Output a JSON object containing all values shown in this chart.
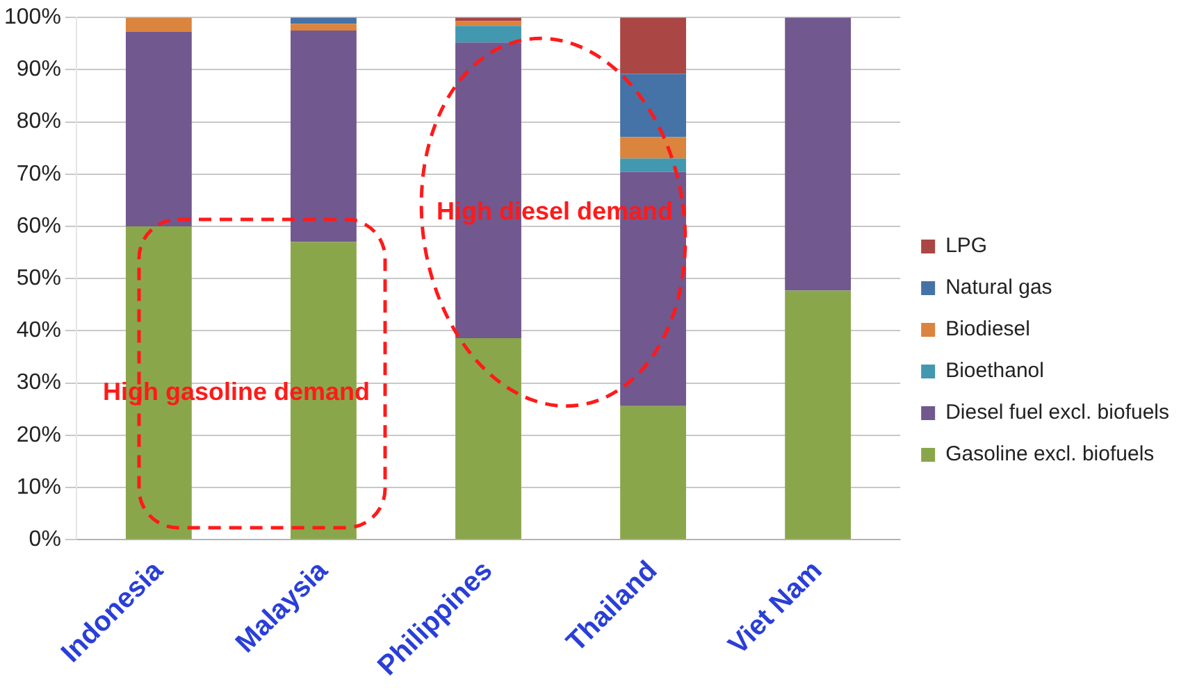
{
  "chart_data": {
    "type": "bar",
    "stacked": true,
    "categories": [
      "Indonesia",
      "Malaysia",
      "Philippines",
      "Thailand",
      "Viet Nam"
    ],
    "series": [
      {
        "name": "Gasoline excl. biofuels",
        "color": "#8aa64b",
        "values": [
          60,
          57,
          38.6,
          25.6,
          47.7
        ]
      },
      {
        "name": "Diesel fuel excl. biofuels",
        "color": "#71588f",
        "values": [
          37.3,
          40.5,
          56.6,
          44.8,
          52.3
        ]
      },
      {
        "name": "Bioethanol",
        "color": "#4298af",
        "values": [
          0,
          0,
          3.2,
          2.6,
          0
        ]
      },
      {
        "name": "Biodiesel",
        "color": "#db843d",
        "values": [
          2.7,
          1.3,
          0.9,
          4.1,
          0
        ]
      },
      {
        "name": "Natural gas",
        "color": "#4572a7",
        "values": [
          0,
          1.2,
          0,
          12.1,
          0
        ]
      },
      {
        "name": "LPG",
        "color": "#aa4643",
        "values": [
          0,
          0,
          0.7,
          10.8,
          0
        ]
      }
    ],
    "ylim": [
      0,
      100
    ],
    "yticks": [
      {
        "value": 0,
        "label": "0%"
      },
      {
        "value": 10,
        "label": "10%"
      },
      {
        "value": 20,
        "label": "20%"
      },
      {
        "value": 30,
        "label": "30%"
      },
      {
        "value": 40,
        "label": "40%"
      },
      {
        "value": 50,
        "label": "50%"
      },
      {
        "value": 60,
        "label": "60%"
      },
      {
        "value": 70,
        "label": "70%"
      },
      {
        "value": 80,
        "label": "80%"
      },
      {
        "value": 90,
        "label": "90%"
      },
      {
        "value": 100,
        "label": "100%"
      }
    ],
    "grid": "y",
    "legend": "right",
    "annotations": [
      "High gasoline demand",
      "High diesel demand"
    ]
  }
}
